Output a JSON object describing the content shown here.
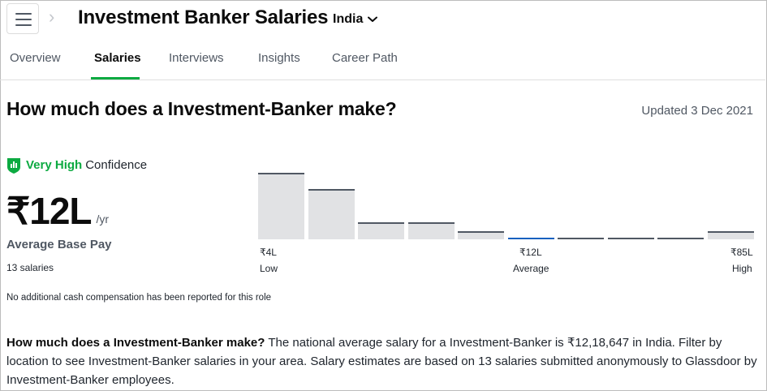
{
  "header": {
    "title": "Investment Banker Salaries",
    "country": "India",
    "breadcrumb_sep": "›"
  },
  "tabs": [
    {
      "label": "Overview",
      "active": false
    },
    {
      "label": "Salaries",
      "active": true
    },
    {
      "label": "Interviews",
      "active": false
    },
    {
      "label": "Insights",
      "active": false
    },
    {
      "label": "Career Path",
      "active": false
    }
  ],
  "section": {
    "heading": "How much does a Investment-Banker make?",
    "updated": "Updated 3 Dec 2021"
  },
  "confidence": {
    "level": "Very High",
    "label": "Confidence",
    "color": "#0caa41"
  },
  "pay": {
    "value": "₹12L",
    "unit": "/yr",
    "label": "Average Base Pay",
    "count": "13 salaries",
    "cash_note": "No additional cash compensation has been reported for this role"
  },
  "chart_data": {
    "type": "bar",
    "bin_counts": [
      4,
      3,
      1,
      1,
      0.5,
      0.1,
      0.05,
      0.05,
      0.05,
      0.5
    ],
    "average_bin": 5,
    "ticks": [
      {
        "value": "₹4L",
        "label": "Low"
      },
      {
        "value": "₹12L",
        "label": "Average"
      },
      {
        "value": "₹85L",
        "label": "High"
      }
    ],
    "bar_color": "#e1e2e4",
    "average_color": "#1861bf"
  },
  "description": {
    "lead": "How much does a Investment-Banker make?",
    "body": " The national average salary for a Investment-Banker is ₹12,18,647 in India. Filter by location to see Investment-Banker salaries in your area. Salary estimates are based on 13 salaries submitted anonymously to Glassdoor by Investment-Banker employees."
  }
}
